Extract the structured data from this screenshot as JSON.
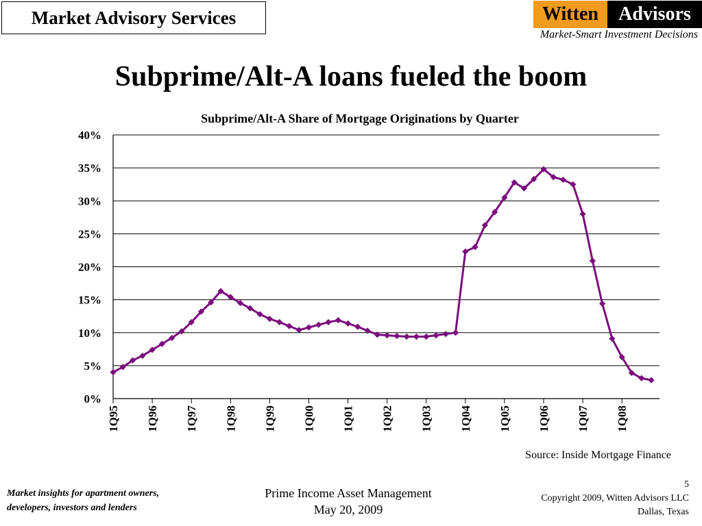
{
  "header": {
    "brand_box": "Market Advisory Services",
    "logo_left": "Witten",
    "logo_right": "Advisors",
    "tagline": "Market-Smart Investment Decisions"
  },
  "slide_title": "Subprime/Alt-A loans fueled the boom",
  "chart_data": {
    "type": "line",
    "title": "Subprime/Alt-A Share of Mortgage Originations by Quarter",
    "xlabel": "",
    "ylabel": "",
    "ylim": [
      0,
      40
    ],
    "yticks": [
      0,
      5,
      10,
      15,
      20,
      25,
      30,
      35,
      40
    ],
    "ytick_suffix": "%",
    "grid": true,
    "x_tick_labels": [
      "1Q95",
      "1Q96",
      "1Q97",
      "1Q98",
      "1Q99",
      "1Q00",
      "1Q01",
      "1Q02",
      "1Q03",
      "1Q04",
      "1Q05",
      "1Q06",
      "1Q07",
      "1Q08"
    ],
    "x_tick_every": 4,
    "series": [
      {
        "color": "#7b0c7d",
        "values": [
          4.0,
          4.8,
          5.8,
          6.5,
          7.4,
          8.3,
          9.2,
          10.2,
          11.6,
          13.2,
          14.6,
          16.3,
          15.4,
          14.5,
          13.7,
          12.8,
          12.1,
          11.6,
          11.0,
          10.4,
          10.8,
          11.2,
          11.6,
          11.9,
          11.4,
          10.9,
          10.3,
          9.7,
          9.6,
          9.5,
          9.4,
          9.4,
          9.4,
          9.6,
          9.8,
          10.0,
          22.3,
          23.0,
          26.3,
          28.3,
          30.5,
          32.8,
          31.9,
          33.3,
          34.8,
          33.6,
          33.2,
          32.5,
          28.0,
          20.9,
          14.4,
          9.1,
          6.3,
          3.9,
          3.1,
          2.8
        ]
      }
    ]
  },
  "source": "Source:  Inside Mortgage Finance",
  "footer": {
    "left_line1": "Market insights for apartment owners,",
    "left_line2": "developers, investors and lenders",
    "center_line1": "Prime Income Asset Management",
    "center_line2": "May 20, 2009",
    "page_number": "5",
    "copyright": "Copyright 2009, Witten Advisors LLC",
    "location": "Dallas, Texas"
  }
}
